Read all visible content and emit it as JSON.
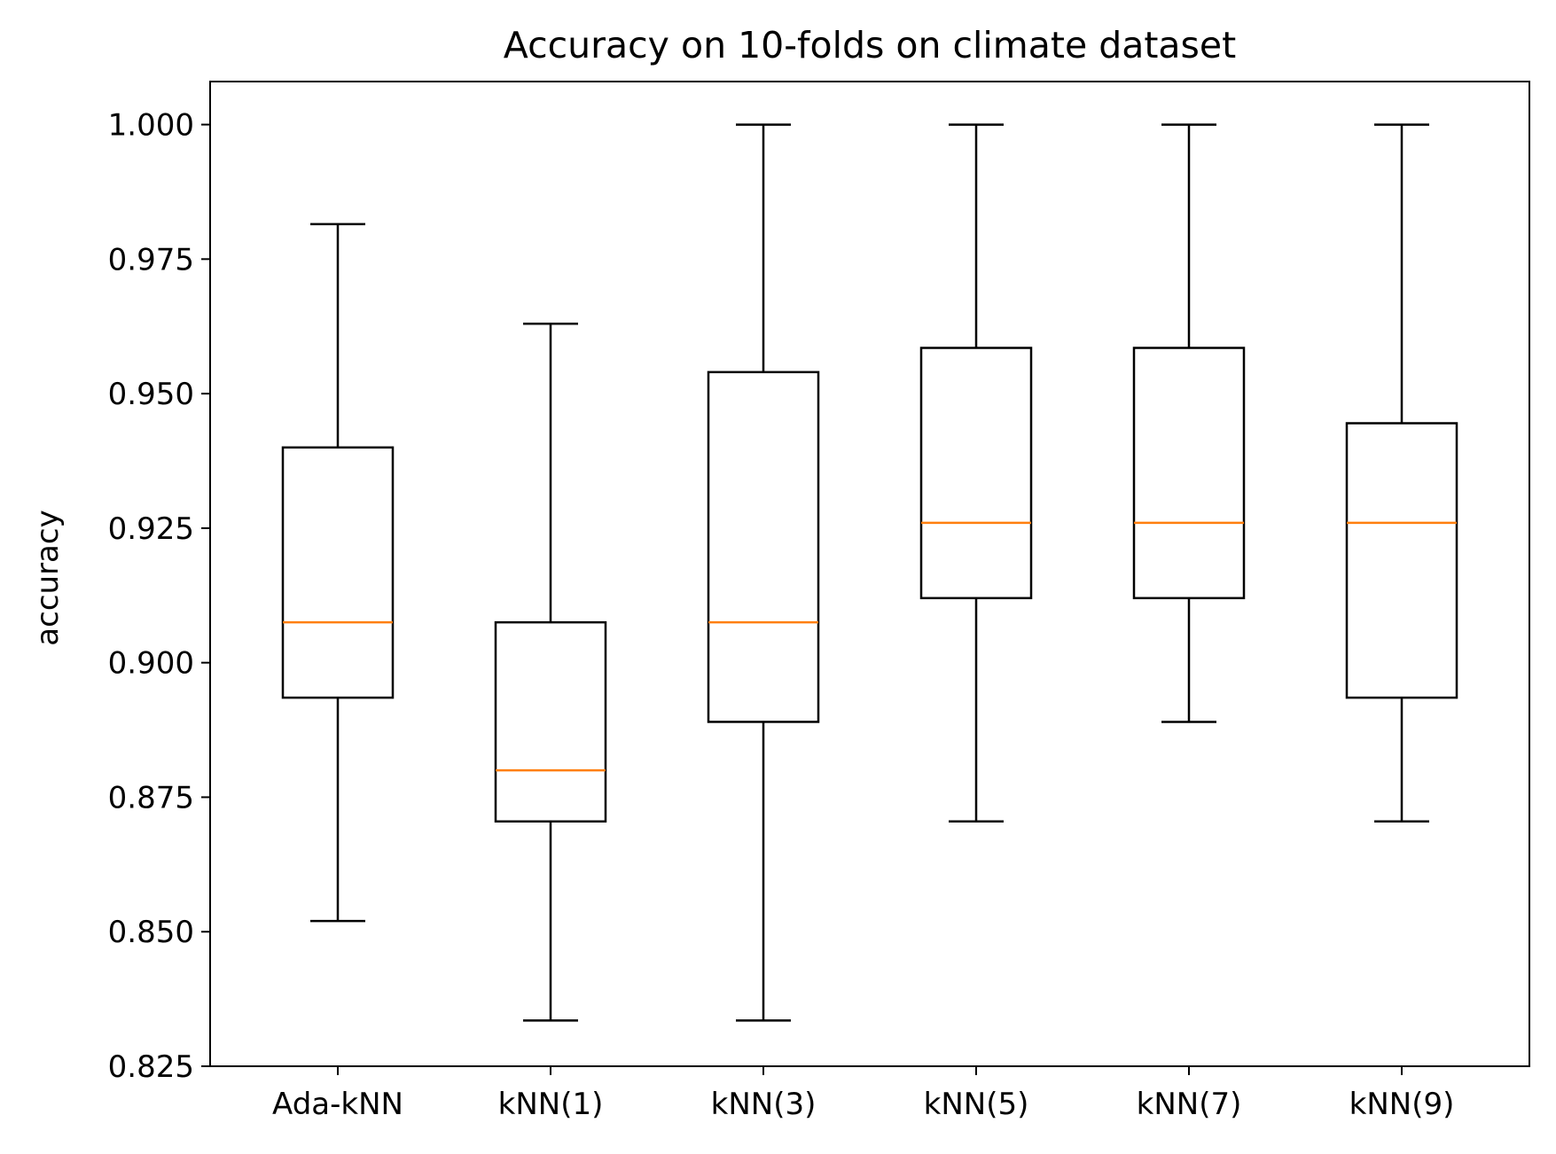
{
  "chart_data": {
    "type": "boxplot",
    "title": "Accuracy on 10-folds on climate dataset",
    "xlabel": "",
    "ylabel": "accuracy",
    "ylim": [
      0.825,
      1.008
    ],
    "yticks": [
      0.825,
      0.85,
      0.875,
      0.9,
      0.925,
      0.95,
      0.975,
      1.0
    ],
    "ytick_labels": [
      "0.825",
      "0.850",
      "0.875",
      "0.900",
      "0.925",
      "0.950",
      "0.975",
      "1.000"
    ],
    "grid": false,
    "categories": [
      "Ada-kNN",
      "kNN(1)",
      "kNN(3)",
      "kNN(5)",
      "kNN(7)",
      "kNN(9)"
    ],
    "boxes": [
      {
        "label": "Ada-kNN",
        "whislo": 0.852,
        "q1": 0.8935,
        "med": 0.9075,
        "q3": 0.94,
        "whishi": 0.9815
      },
      {
        "label": "kNN(1)",
        "whislo": 0.8335,
        "q1": 0.8705,
        "med": 0.88,
        "q3": 0.9075,
        "whishi": 0.963
      },
      {
        "label": "kNN(3)",
        "whislo": 0.8335,
        "q1": 0.889,
        "med": 0.9075,
        "q3": 0.954,
        "whishi": 1.0
      },
      {
        "label": "kNN(5)",
        "whislo": 0.8705,
        "q1": 0.912,
        "med": 0.926,
        "q3": 0.9585,
        "whishi": 1.0
      },
      {
        "label": "kNN(7)",
        "whislo": 0.889,
        "q1": 0.912,
        "med": 0.926,
        "q3": 0.9585,
        "whishi": 1.0
      },
      {
        "label": "kNN(9)",
        "whislo": 0.8705,
        "q1": 0.8935,
        "med": 0.926,
        "q3": 0.9445,
        "whishi": 1.0
      }
    ],
    "colors": {
      "box": "#000000",
      "median": "#ff7f0e"
    }
  }
}
